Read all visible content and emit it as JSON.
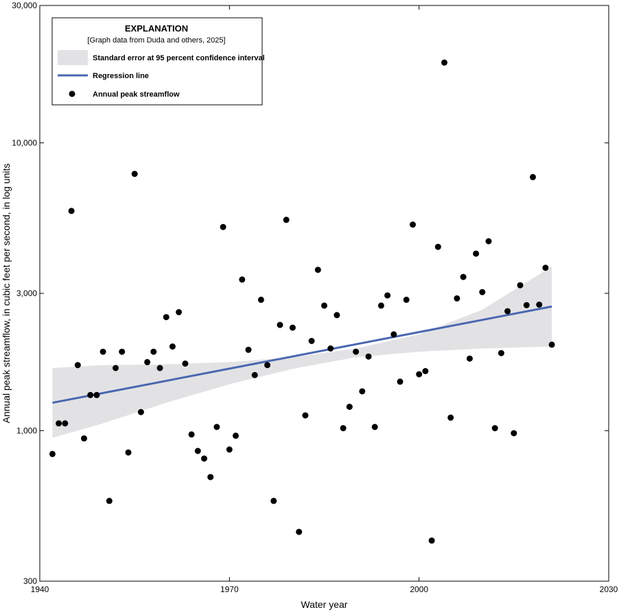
{
  "chart_data": {
    "type": "scatter",
    "xlabel": "Water year",
    "ylabel": "Annual peak streamflow, in cubic feet per second, in log units",
    "xlim": [
      1940,
      2030
    ],
    "ylim": [
      300,
      30000
    ],
    "yscale": "log",
    "xticks": [
      1940,
      1970,
      2000,
      2030
    ],
    "xtick_labels": [
      "1940",
      "1970",
      "2000",
      "2030"
    ],
    "yticks": [
      300,
      1000,
      3000,
      10000,
      30000
    ],
    "ytick_labels": [
      "300",
      "1,000",
      "3,000",
      "10,000",
      "30,000"
    ],
    "grid": false,
    "legend": {
      "placement": "top-left",
      "title": "EXPLANATION",
      "subtitle": "[Graph data from Duda and others, 2025]",
      "entries": [
        {
          "label": "Standard error at 95 percent confidence interval",
          "symbol": "band"
        },
        {
          "label": "Regression line",
          "symbol": "line"
        },
        {
          "label": "Annual peak streamflow",
          "symbol": "dot"
        }
      ]
    },
    "colors": {
      "regression": "#4a66b0",
      "band": "#e2e2e4",
      "points": "#000000"
    },
    "regression_line": {
      "x": [
        1942,
        2021
      ],
      "y": [
        1250,
        2700
      ]
    },
    "confidence_band": {
      "x": [
        1942,
        1950,
        1960,
        1970,
        1980,
        1990,
        2000,
        2010,
        2021
      ],
      "lower": [
        945,
        1060,
        1250,
        1450,
        1640,
        1800,
        1880,
        1930,
        1960
      ],
      "upper": [
        1650,
        1690,
        1700,
        1730,
        1800,
        1930,
        2160,
        2630,
        3720
      ]
    },
    "series": [
      {
        "name": "Annual peak streamflow",
        "x": [
          1942,
          1943,
          1944,
          1945,
          1946,
          1947,
          1948,
          1949,
          1950,
          1951,
          1952,
          1953,
          1954,
          1955,
          1956,
          1957,
          1958,
          1959,
          1960,
          1961,
          1962,
          1963,
          1964,
          1965,
          1966,
          1967,
          1968,
          1969,
          1970,
          1971,
          1972,
          1973,
          1974,
          1975,
          1976,
          1977,
          1978,
          1979,
          1980,
          1981,
          1982,
          1983,
          1984,
          1985,
          1986,
          1987,
          1988,
          1989,
          1990,
          1991,
          1992,
          1993,
          1994,
          1995,
          1996,
          1997,
          1998,
          1999,
          2000,
          2001,
          2002,
          2003,
          2004,
          2005,
          2006,
          2007,
          2008,
          2009,
          2010,
          2011,
          2012,
          2013,
          2014,
          2015,
          2016,
          2017,
          2018,
          2019,
          2020,
          2021
        ],
        "y": [
          830,
          1060,
          1060,
          5800,
          1690,
          940,
          1330,
          1330,
          1880,
          570,
          1650,
          1880,
          840,
          7800,
          1160,
          1730,
          1880,
          1650,
          2480,
          1960,
          2580,
          1710,
          970,
          850,
          800,
          690,
          1030,
          5100,
          860,
          960,
          3350,
          1910,
          1560,
          2850,
          1690,
          570,
          2330,
          5400,
          2280,
          445,
          1130,
          2050,
          3620,
          2720,
          1930,
          2520,
          1020,
          1210,
          1880,
          1370,
          1810,
          1030,
          2720,
          2950,
          2160,
          1480,
          2850,
          5200,
          1570,
          1610,
          415,
          4350,
          19000,
          1110,
          2880,
          3420,
          1780,
          4120,
          3030,
          4550,
          1020,
          1860,
          2600,
          980,
          3200,
          2730,
          7600,
          2740,
          3680,
          1990
        ]
      }
    ]
  }
}
